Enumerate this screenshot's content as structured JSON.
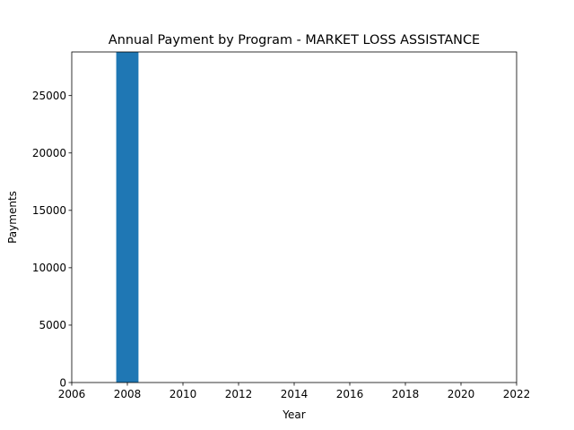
{
  "chart_data": {
    "type": "bar",
    "title": "Annual Payment by Program - MARKET LOSS ASSISTANCE",
    "xlabel": "Year",
    "ylabel": "Payments",
    "xlim": [
      2006,
      2022
    ],
    "ylim": [
      0,
      28800
    ],
    "x_ticks": [
      2006,
      2008,
      2010,
      2012,
      2014,
      2016,
      2018,
      2020,
      2022
    ],
    "y_ticks": [
      0,
      5000,
      10000,
      15000,
      20000,
      25000
    ],
    "bar_width": 0.8,
    "grid": false,
    "bars": [
      {
        "x": 2008,
        "value": 28800
      }
    ],
    "colors": {
      "bar": "#1f77b4"
    }
  }
}
